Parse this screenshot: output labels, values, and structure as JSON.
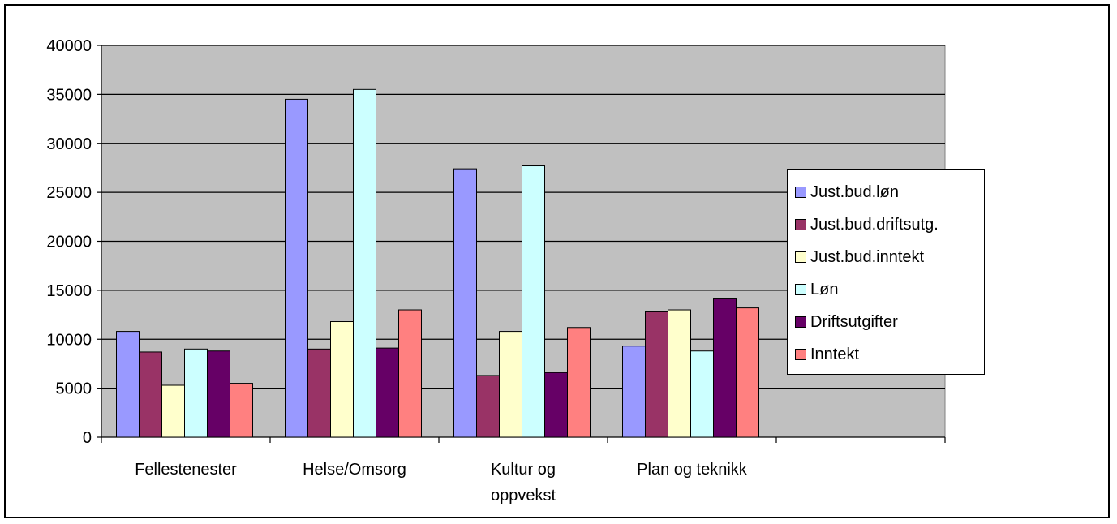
{
  "chart_data": {
    "type": "bar",
    "categories": [
      "Fellestenester",
      "Helse/Omsorg",
      "Kultur og oppvekst",
      "Plan og teknikk",
      ""
    ],
    "category_label_lines": [
      [
        "Fellestenester"
      ],
      [
        "Helse/Omsorg"
      ],
      [
        "Kultur og",
        "oppvekst"
      ],
      [
        "Plan og teknikk"
      ],
      []
    ],
    "series": [
      {
        "name": "Just.bud.løn",
        "color": "#9999ff",
        "values": [
          10800,
          34500,
          27400,
          9300,
          null
        ]
      },
      {
        "name": "Just.bud.driftsutg.",
        "color": "#993366",
        "values": [
          8700,
          9000,
          6300,
          12800,
          null
        ]
      },
      {
        "name": "Just.bud.inntekt",
        "color": "#ffffcc",
        "values": [
          5300,
          11800,
          10800,
          13000,
          null
        ]
      },
      {
        "name": "Løn",
        "color": "#ccffff",
        "values": [
          9000,
          35500,
          27700,
          8800,
          null
        ]
      },
      {
        "name": "Driftsutgifter",
        "color": "#660066",
        "values": [
          8800,
          9100,
          6600,
          14200,
          null
        ]
      },
      {
        "name": "Inntekt",
        "color": "#ff8080",
        "values": [
          5500,
          13000,
          11200,
          13200,
          null
        ]
      }
    ],
    "yticks": [
      "0",
      "5000",
      "10000",
      "15000",
      "20000",
      "25000",
      "30000",
      "35000",
      "40000"
    ],
    "ylim": [
      0,
      40000
    ],
    "grid": true,
    "plot_background": "#c0c0c0",
    "legend_position": "right"
  }
}
